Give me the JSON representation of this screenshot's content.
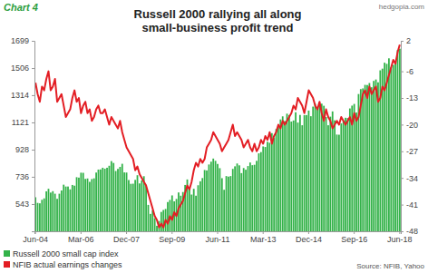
{
  "chart_data": {
    "type": "bar",
    "title": [
      "Russell 2000 rallying all along",
      "small-business profit trend"
    ],
    "annotations": [
      "Chart 4",
      "hedgopia.com",
      "Source: NFIB, Yahoo"
    ],
    "categories": [
      "Jun-04",
      null,
      null,
      null,
      null,
      null,
      null,
      null,
      null,
      null,
      null,
      null,
      null,
      null,
      null,
      null,
      null,
      null,
      null,
      null,
      null,
      "Mar-06",
      null,
      null,
      null,
      null,
      null,
      null,
      null,
      null,
      null,
      null,
      null,
      null,
      null,
      null,
      null,
      null,
      null,
      null,
      null,
      null,
      "Dec-07",
      null,
      null,
      null,
      null,
      null,
      null,
      null,
      null,
      null,
      null,
      null,
      null,
      null,
      null,
      null,
      null,
      null,
      null,
      null,
      null,
      "Sep-09",
      null,
      null,
      null,
      null,
      null,
      null,
      null,
      null,
      null,
      null,
      null,
      null,
      null,
      null,
      null,
      null,
      null,
      null,
      null,
      null,
      "Jun-11",
      null,
      null,
      null,
      null,
      null,
      null,
      null,
      null,
      null,
      null,
      null,
      null,
      null,
      null,
      null,
      null,
      null,
      null,
      null,
      null,
      "Mar-13",
      null,
      null,
      null,
      null,
      null,
      null,
      null,
      null,
      null,
      null,
      null,
      null,
      null,
      null,
      null,
      null,
      null,
      null,
      null,
      null,
      "Dec-14",
      null,
      null,
      null,
      null,
      null,
      null,
      null,
      null,
      null,
      null,
      null,
      null,
      null,
      null,
      null,
      null,
      null,
      null,
      null,
      null,
      "Sep-16",
      null,
      null,
      null,
      null,
      null,
      null,
      null,
      null,
      null,
      null,
      null,
      null,
      null,
      null,
      null,
      null,
      null,
      null,
      null,
      null,
      "Jun-18"
    ],
    "series": [
      {
        "name": "Russell 2000 small cap index",
        "type": "bar",
        "color": "#33b249",
        "values": [
          591,
          551,
          548,
          573,
          583,
          633,
          651,
          624,
          634,
          616,
          580,
          616,
          639,
          680,
          667,
          667,
          647,
          678,
          673,
          733,
          730,
          765,
          764,
          721,
          724,
          700,
          720,
          725,
          766,
          787,
          788,
          800,
          793,
          800,
          814,
          847,
          834,
          777,
          792,
          806,
          828,
          767,
          766,
          713,
          686,
          687,
          714,
          747,
          689,
          710,
          740,
          679,
          537,
          473,
          499,
          443,
          389,
          423,
          487,
          501,
          508,
          557,
          572,
          604,
          562,
          579,
          625,
          602,
          628,
          678,
          717,
          662,
          610,
          651,
          602,
          676,
          704,
          727,
          784,
          781,
          823,
          843,
          865,
          849,
          827,
          797,
          726,
          644,
          741,
          737,
          741,
          792,
          810,
          830,
          817,
          762,
          798,
          786,
          812,
          837,
          818,
          821,
          849,
          902,
          911,
          951,
          947,
          984,
          977,
          1045,
          1011,
          1074,
          1100,
          1142,
          1164,
          1131,
          1183,
          1173,
          1127,
          1135,
          1193,
          1120,
          1174,
          1101,
          1173,
          1173,
          1205,
          1165,
          1233,
          1253,
          1220,
          1247,
          1254,
          1239,
          1159,
          1101,
          1162,
          1199,
          1136,
          1035,
          1034,
          1114,
          1130,
          1154,
          1152,
          1220,
          1240,
          1252,
          1191,
          1322,
          1357,
          1362,
          1387,
          1386,
          1400,
          1370,
          1415,
          1425,
          1405,
          1490,
          1502,
          1544,
          1536,
          1575,
          1512,
          1529,
          1542,
          1634,
          1643
        ]
      },
      {
        "name": "NFIB actual earnings changes",
        "type": "line",
        "axis": "y2",
        "color": "#e31e24",
        "values": [
          -9,
          -12,
          -14,
          -10,
          -11,
          -8,
          -6,
          -11,
          -10,
          -8,
          -14,
          -13,
          -12,
          -15,
          -18,
          -17,
          -16,
          -13,
          -11,
          -14,
          -13,
          -17,
          -15,
          -14,
          -17,
          -16,
          -19,
          -18,
          -16,
          -15,
          -17,
          -17,
          -16,
          -18,
          -20,
          -18,
          -19,
          -20,
          -21,
          -19,
          -22,
          -24,
          -26,
          -27,
          -28,
          -29,
          -32,
          -31,
          -33,
          -34,
          -35,
          -36,
          -38,
          -40,
          -42,
          -44,
          -45,
          -47,
          -46,
          -47,
          -45,
          -46,
          -44,
          -45,
          -43,
          -44,
          -42,
          -41,
          -40,
          -38,
          -36,
          -37,
          -35,
          -32,
          -30,
          -31,
          -29,
          -30,
          -29,
          -26,
          -25,
          -24,
          -22,
          -23,
          -24,
          -25,
          -27,
          -26,
          -25,
          -24,
          -22,
          -20,
          -23,
          -22,
          -23,
          -24,
          -26,
          -25,
          -24,
          -26,
          -27,
          -25,
          -27,
          -26,
          -24,
          -25,
          -23,
          -24,
          -22,
          -25,
          -23,
          -22,
          -20,
          -21,
          -19,
          -20,
          -19,
          -18,
          -17,
          -15,
          -16,
          -13,
          -14,
          -15,
          -17,
          -14,
          -11,
          -12,
          -13,
          -15,
          -16,
          -14,
          -17,
          -19,
          -16,
          -18,
          -19,
          -21,
          -20,
          -19,
          -20,
          -18,
          -19,
          -20,
          -19,
          -18,
          -20,
          -17,
          -19,
          -18,
          -15,
          -12,
          -11,
          -13,
          -10,
          -12,
          -11,
          -10,
          -14,
          -13,
          -10,
          -11,
          -9,
          -7,
          -5,
          -3,
          -4,
          -1,
          1
        ]
      }
    ],
    "ylim": [
      350,
      1699
    ],
    "yticks": [
      543,
      736,
      928,
      1121,
      1314,
      1506,
      1699
    ],
    "y2lim": [
      -48,
      2
    ],
    "y2ticks": [
      -48,
      -41,
      -34,
      -27,
      -20,
      -13,
      -6,
      2
    ],
    "grid": false,
    "legend": "lower left"
  }
}
